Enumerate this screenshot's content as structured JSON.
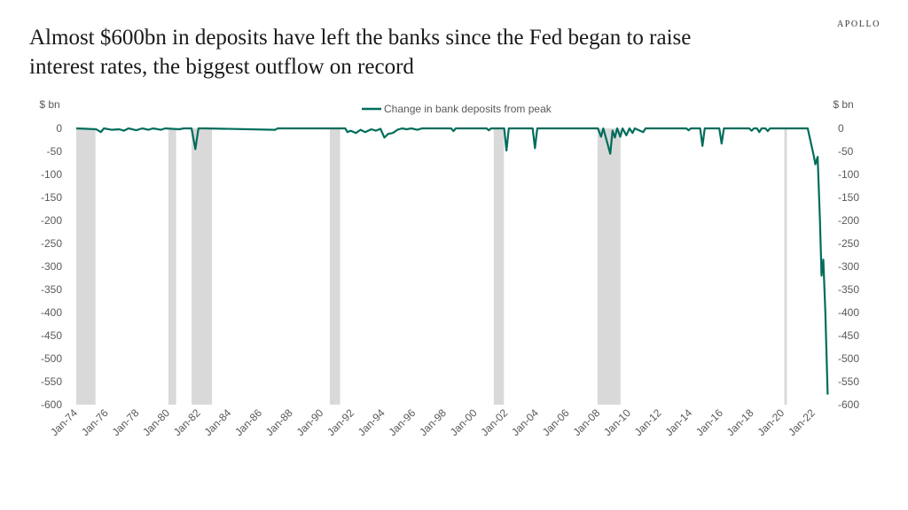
{
  "header": {
    "title": "Almost $600bn in deposits have left the banks since the Fed began to raise interest rates, the biggest outflow on record",
    "brand": "APOLLO"
  },
  "chart_data": {
    "type": "line",
    "left_unit_label": "$ bn",
    "right_unit_label": "$ bn",
    "legend": {
      "label": "Change in bank deposits from peak",
      "placement": "top-center"
    },
    "series": [
      {
        "name": "Change in bank deposits from peak",
        "color": "#006d5b",
        "points": [
          [
            1974.0,
            0
          ],
          [
            1974.7,
            -1
          ],
          [
            1975.3,
            -2
          ],
          [
            1975.6,
            -8
          ],
          [
            1975.8,
            0
          ],
          [
            1976.3,
            -3
          ],
          [
            1976.8,
            -2
          ],
          [
            1977.1,
            -5
          ],
          [
            1977.4,
            0
          ],
          [
            1977.9,
            -4
          ],
          [
            1978.3,
            0
          ],
          [
            1978.7,
            -3
          ],
          [
            1979.0,
            0
          ],
          [
            1979.5,
            -3
          ],
          [
            1979.8,
            0
          ],
          [
            1980.7,
            -2
          ],
          [
            1981.0,
            0
          ],
          [
            1981.5,
            0
          ],
          [
            1981.75,
            -45
          ],
          [
            1981.95,
            0
          ],
          [
            1982.4,
            0
          ],
          [
            1986.95,
            -3
          ],
          [
            1987.1,
            0
          ],
          [
            1991.5,
            0
          ],
          [
            1991.65,
            -8
          ],
          [
            1991.85,
            -5
          ],
          [
            1992.2,
            -10
          ],
          [
            1992.5,
            -3
          ],
          [
            1992.8,
            -8
          ],
          [
            1993.2,
            -2
          ],
          [
            1993.5,
            -5
          ],
          [
            1993.8,
            -1
          ],
          [
            1994.05,
            -20
          ],
          [
            1994.3,
            -12
          ],
          [
            1994.6,
            -10
          ],
          [
            1994.9,
            -3
          ],
          [
            1995.2,
            0
          ],
          [
            1995.5,
            -2
          ],
          [
            1995.8,
            0
          ],
          [
            1996.2,
            -3
          ],
          [
            1996.5,
            0
          ],
          [
            1998.4,
            0
          ],
          [
            1998.55,
            -6
          ],
          [
            1998.7,
            0
          ],
          [
            2000.7,
            0
          ],
          [
            2000.85,
            -4
          ],
          [
            2001.0,
            0
          ],
          [
            2001.85,
            0
          ],
          [
            2002.0,
            -48
          ],
          [
            2002.15,
            0
          ],
          [
            2003.7,
            0
          ],
          [
            2003.85,
            -43
          ],
          [
            2004.0,
            0
          ],
          [
            2007.95,
            0
          ],
          [
            2008.15,
            -18
          ],
          [
            2008.3,
            0
          ],
          [
            2008.75,
            -55
          ],
          [
            2008.9,
            -5
          ],
          [
            2009.05,
            -20
          ],
          [
            2009.2,
            0
          ],
          [
            2009.4,
            -18
          ],
          [
            2009.55,
            0
          ],
          [
            2009.8,
            -15
          ],
          [
            2010.0,
            0
          ],
          [
            2010.2,
            -10
          ],
          [
            2010.35,
            0
          ],
          [
            2010.9,
            -8
          ],
          [
            2011.05,
            0
          ],
          [
            2013.7,
            0
          ],
          [
            2013.85,
            -4
          ],
          [
            2014.0,
            0
          ],
          [
            2014.6,
            0
          ],
          [
            2014.75,
            -38
          ],
          [
            2014.9,
            0
          ],
          [
            2015.85,
            0
          ],
          [
            2016.0,
            -33
          ],
          [
            2016.15,
            0
          ],
          [
            2017.8,
            0
          ],
          [
            2017.95,
            -5
          ],
          [
            2018.1,
            0
          ],
          [
            2018.3,
            0
          ],
          [
            2018.45,
            -8
          ],
          [
            2018.6,
            0
          ],
          [
            2018.85,
            0
          ],
          [
            2019.0,
            -6
          ],
          [
            2019.15,
            0
          ],
          [
            2021.6,
            0
          ],
          [
            2022.0,
            -60
          ],
          [
            2022.1,
            -78
          ],
          [
            2022.25,
            -62
          ],
          [
            2022.4,
            -200
          ],
          [
            2022.5,
            -320
          ],
          [
            2022.62,
            -285
          ],
          [
            2022.75,
            -400
          ],
          [
            2022.9,
            -578
          ]
        ]
      }
    ],
    "recessions": [
      [
        1974.0,
        1975.25
      ],
      [
        1980.0,
        1980.5
      ],
      [
        1981.5,
        1982.83
      ],
      [
        1990.5,
        1991.17
      ],
      [
        2001.17,
        2001.83
      ],
      [
        2007.92,
        2009.42
      ],
      [
        2020.08,
        2020.25
      ]
    ],
    "x_ticks": [
      {
        "label": "Jan-74",
        "value": 1974
      },
      {
        "label": "Jan-76",
        "value": 1976
      },
      {
        "label": "Jan-78",
        "value": 1978
      },
      {
        "label": "Jan-80",
        "value": 1980
      },
      {
        "label": "Jan-82",
        "value": 1982
      },
      {
        "label": "Jan-84",
        "value": 1984
      },
      {
        "label": "Jan-86",
        "value": 1986
      },
      {
        "label": "Jan-88",
        "value": 1988
      },
      {
        "label": "Jan-90",
        "value": 1990
      },
      {
        "label": "Jan-92",
        "value": 1992
      },
      {
        "label": "Jan-94",
        "value": 1994
      },
      {
        "label": "Jan-96",
        "value": 1996
      },
      {
        "label": "Jan-98",
        "value": 1998
      },
      {
        "label": "Jan-00",
        "value": 2000
      },
      {
        "label": "Jan-02",
        "value": 2002
      },
      {
        "label": "Jan-04",
        "value": 2004
      },
      {
        "label": "Jan-06",
        "value": 2006
      },
      {
        "label": "Jan-08",
        "value": 2008
      },
      {
        "label": "Jan-10",
        "value": 2010
      },
      {
        "label": "Jan-12",
        "value": 2012
      },
      {
        "label": "Jan-14",
        "value": 2014
      },
      {
        "label": "Jan-16",
        "value": 2016
      },
      {
        "label": "Jan-18",
        "value": 2018
      },
      {
        "label": "Jan-20",
        "value": 2020
      },
      {
        "label": "Jan-22",
        "value": 2022
      }
    ],
    "y_ticks": [
      0,
      -50,
      -100,
      -150,
      -200,
      -250,
      -300,
      -350,
      -400,
      -450,
      -500,
      -550,
      -600
    ],
    "xlim": [
      1974,
      2023.05
    ],
    "ylim": [
      -600,
      0
    ],
    "grid": false
  }
}
